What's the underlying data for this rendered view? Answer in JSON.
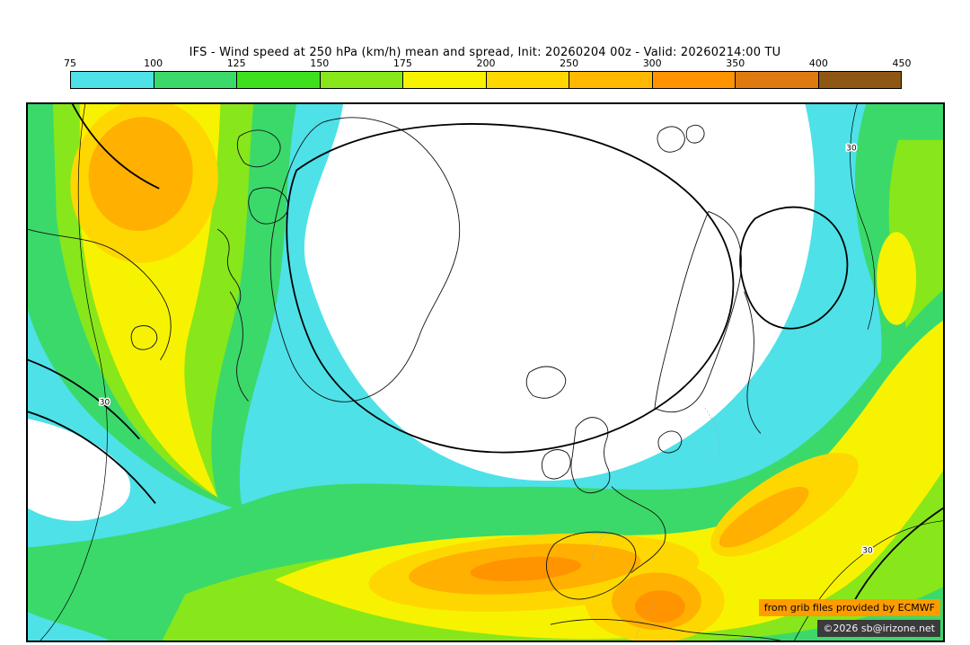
{
  "title": "IFS - Wind speed at 250 hPa (km/h) mean and spread, Init: 20260204 00z - Valid: 20260214:00 TU",
  "colorbar": {
    "ticks": [
      "75",
      "100",
      "125",
      "150",
      "175",
      "200",
      "250",
      "300",
      "350",
      "400",
      "450"
    ],
    "colors": [
      "#4EE1E8",
      "#3BD96A",
      "#3EE01E",
      "#87E71B",
      "#F7F300",
      "#FFD700",
      "#FFB900",
      "#FF9300",
      "#DE7A10",
      "#8F5715"
    ]
  },
  "map": {
    "contour_label": "30",
    "credits": {
      "line1": "from grib files provided by ECMWF",
      "line2": "©2026 sb@irizone.net"
    }
  },
  "chart_data": {
    "type": "heatmap",
    "title": "IFS - Wind speed at 250 hPa (km/h) mean and spread",
    "init": "20260204 00z",
    "valid": "20260214:00 TU",
    "units": "km/h",
    "scale_ticks": [
      75,
      100,
      125,
      150,
      175,
      200,
      250,
      300,
      350,
      400,
      450
    ],
    "scale_colors": [
      "#4EE1E8",
      "#3BD96A",
      "#3EE01E",
      "#87E71B",
      "#F7F300",
      "#FFD700",
      "#FFB900",
      "#FF9300",
      "#DE7A10",
      "#8F5715"
    ],
    "spread_contour_value": 30
  }
}
